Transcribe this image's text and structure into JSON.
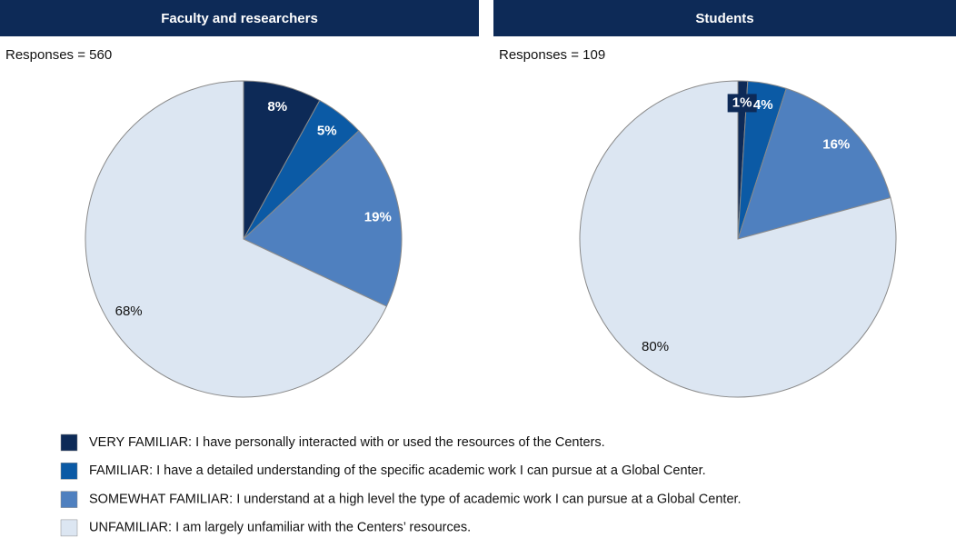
{
  "chart_data": [
    {
      "type": "pie",
      "title": "Faculty and researchers",
      "subtitle": "Responses = 560",
      "categories": [
        "VERY FAMILIAR: I have personally interacted with or used the resources of the Centers.",
        "FAMILIAR: I have a detailed understanding of the specific academic work I can pursue at a Global Center.",
        "SOMEWHAT FAMILIAR: I understand at a high level the type of academic work I can pursue at a Global Center.",
        "UNFAMILIAR: I am largely unfamiliar with the Centers’ resources."
      ],
      "values": [
        8,
        5,
        19,
        68
      ],
      "value_labels": [
        "8%",
        "5%",
        "19%",
        "68%"
      ],
      "colors": [
        "#0d2a57",
        "#0b5aa5",
        "#4f80bf",
        "#dce6f2"
      ]
    },
    {
      "type": "pie",
      "title": "Students",
      "subtitle": "Responses = 109",
      "categories": [
        "VERY FAMILIAR: I have personally interacted with or used the resources of the Centers.",
        "FAMILIAR: I have a detailed understanding of the specific academic work I can pursue at a Global Center.",
        "SOMEWHAT FAMILIAR: I understand at a high level the type of academic work I can pursue at a Global Center.",
        "UNFAMILIAR: I am largely unfamiliar with the Centers’ resources."
      ],
      "values": [
        1,
        4,
        16,
        80
      ],
      "value_labels": [
        "1%",
        "4%",
        "16%",
        "80%"
      ],
      "colors": [
        "#0d2a57",
        "#0b5aa5",
        "#4f80bf",
        "#dce6f2"
      ]
    }
  ]
}
